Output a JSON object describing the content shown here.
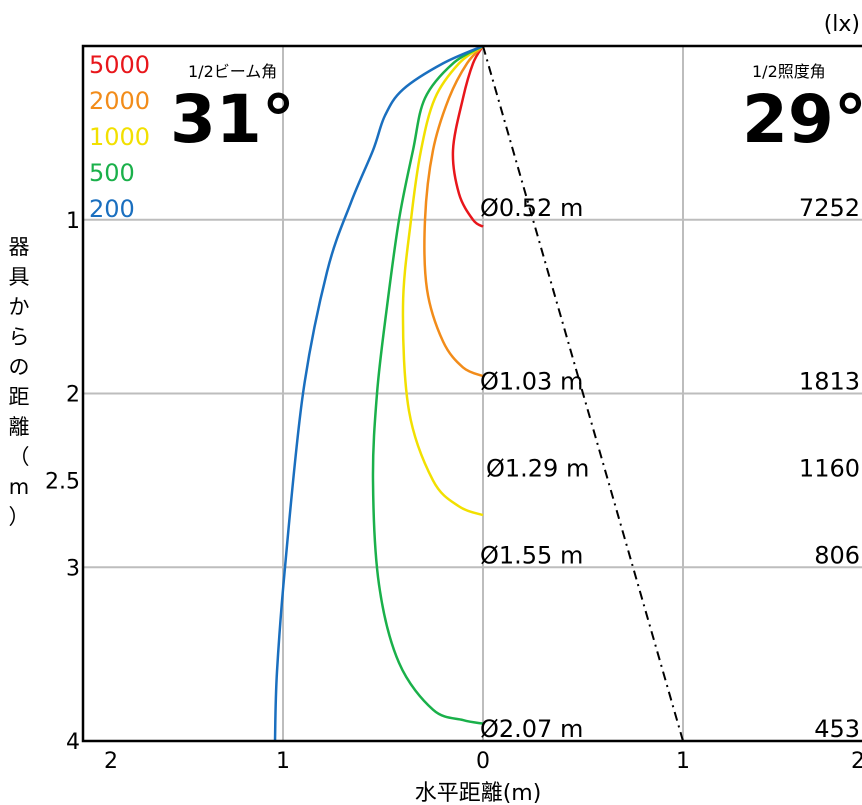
{
  "chart_data": {
    "type": "line",
    "title": "",
    "xlabel": "水平距離(m)",
    "ylabel": "器具からの距離（m）",
    "unit_label": "(lx)",
    "x_ticks": [
      "2",
      "1",
      "0",
      "1",
      "2"
    ],
    "y_ticks": [
      "1",
      "2",
      "2.5",
      "3",
      "4"
    ],
    "xlim": [
      -2,
      2
    ],
    "ylim": [
      0,
      4
    ],
    "beam_angle": {
      "label": "1/2ビーム角",
      "value": "31°"
    },
    "field_angle": {
      "label": "1/2照度角",
      "value": "29°"
    },
    "legend": [
      {
        "label": "5000",
        "color": "#e8161b"
      },
      {
        "label": "2000",
        "color": "#f28c1a"
      },
      {
        "label": "1000",
        "color": "#f2e000"
      },
      {
        "label": "500",
        "color": "#1ab04a"
      },
      {
        "label": "200",
        "color": "#1a6fbf"
      }
    ],
    "isolux": [
      {
        "name": "5000",
        "color": "#e8161b",
        "points": [
          [
            0,
            0
          ],
          [
            -0.05,
            0.1
          ],
          [
            -0.1,
            0.3
          ],
          [
            -0.15,
            0.6
          ],
          [
            -0.12,
            0.85
          ],
          [
            -0.05,
            1.0
          ],
          [
            0,
            1.04
          ]
        ]
      },
      {
        "name": "2000",
        "color": "#f28c1a",
        "points": [
          [
            0,
            0
          ],
          [
            -0.08,
            0.1
          ],
          [
            -0.17,
            0.3
          ],
          [
            -0.25,
            0.6
          ],
          [
            -0.29,
            1.0
          ],
          [
            -0.28,
            1.4
          ],
          [
            -0.2,
            1.7
          ],
          [
            -0.1,
            1.85
          ],
          [
            0,
            1.9
          ]
        ]
      },
      {
        "name": "1000",
        "color": "#f2e000",
        "points": [
          [
            0,
            0
          ],
          [
            -0.12,
            0.1
          ],
          [
            -0.24,
            0.3
          ],
          [
            -0.31,
            0.6
          ],
          [
            -0.36,
            1.0
          ],
          [
            -0.4,
            1.5
          ],
          [
            -0.37,
            2.1
          ],
          [
            -0.25,
            2.5
          ],
          [
            -0.12,
            2.65
          ],
          [
            0,
            2.7
          ]
        ]
      },
      {
        "name": "500",
        "color": "#1ab04a",
        "points": [
          [
            0,
            0
          ],
          [
            -0.15,
            0.1
          ],
          [
            -0.29,
            0.3
          ],
          [
            -0.35,
            0.6
          ],
          [
            -0.42,
            1.0
          ],
          [
            -0.48,
            1.5
          ],
          [
            -0.53,
            2.0
          ],
          [
            -0.55,
            2.5
          ],
          [
            -0.52,
            3.1
          ],
          [
            -0.42,
            3.55
          ],
          [
            -0.25,
            3.82
          ],
          [
            -0.1,
            3.88
          ],
          [
            0,
            3.9
          ]
        ]
      },
      {
        "name": "200",
        "color": "#1a6fbf",
        "points": [
          [
            0,
            0
          ],
          [
            -0.2,
            0.1
          ],
          [
            -0.4,
            0.25
          ],
          [
            -0.49,
            0.4
          ],
          [
            -0.55,
            0.6
          ],
          [
            -0.66,
            0.9
          ],
          [
            -0.78,
            1.3
          ],
          [
            -0.9,
            2.0
          ],
          [
            -0.99,
            3.0
          ],
          [
            -1.03,
            3.6
          ],
          [
            -1.04,
            4.0
          ]
        ]
      }
    ],
    "beam_line": [
      [
        0,
        0
      ],
      [
        1,
        4
      ]
    ],
    "diameters": [
      {
        "distance": 1,
        "label": "Ø0.52 m",
        "lux": "7252"
      },
      {
        "distance": 2,
        "label": "Ø1.03 m",
        "lux": "1813"
      },
      {
        "distance": 2.5,
        "label": "Ø1.29 m",
        "lux": "1160"
      },
      {
        "distance": 3,
        "label": "Ø1.55 m",
        "lux": "806"
      },
      {
        "distance": 4,
        "label": "Ø2.07 m",
        "lux": "453"
      }
    ]
  }
}
